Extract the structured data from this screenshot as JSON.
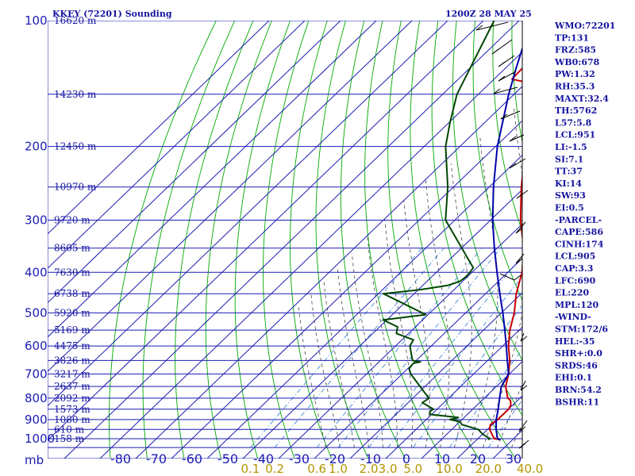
{
  "title_left": "KKEY (72201) Sounding",
  "title_right": "1200Z 28 MAY 25",
  "chart_data": {
    "type": "line",
    "title": "KKEY (72201) Sounding",
    "y_axis": {
      "unit_label": "mb",
      "ticks": [
        100,
        200,
        300,
        400,
        500,
        600,
        700,
        800,
        900,
        1000
      ],
      "ylim": [
        1000,
        100
      ]
    },
    "x_axis": {
      "ticks": [
        -80,
        -70,
        -60,
        -50,
        -40,
        -30,
        -20,
        -10,
        0,
        10,
        20,
        30,
        40
      ],
      "xlim": [
        -80,
        40
      ],
      "skewed": true
    },
    "mixing_ratio_labels": [
      "0.1",
      "0.2",
      "0.6",
      "1.0",
      "2.0",
      "3.0",
      "5.0",
      "10.0",
      "20.0",
      "40.0"
    ],
    "height_labels": [
      {
        "p": 100,
        "label": "16620 m"
      },
      {
        "p": 150,
        "label": "14230 m"
      },
      {
        "p": 200,
        "label": "12450 m"
      },
      {
        "p": 250,
        "label": "10970 m"
      },
      {
        "p": 300,
        "label": "9720 m"
      },
      {
        "p": 350,
        "label": "8605 m"
      },
      {
        "p": 400,
        "label": "7630 m"
      },
      {
        "p": 450,
        "label": "6738 m"
      },
      {
        "p": 500,
        "label": "5920 m"
      },
      {
        "p": 550,
        "label": "5169 m"
      },
      {
        "p": 600,
        "label": "4475 m"
      },
      {
        "p": 650,
        "label": "3826 m"
      },
      {
        "p": 700,
        "label": "3217 m"
      },
      {
        "p": 750,
        "label": "2637 m"
      },
      {
        "p": 800,
        "label": "2092 m"
      },
      {
        "p": 850,
        "label": "1573 m"
      },
      {
        "p": 900,
        "label": "1080 m"
      },
      {
        "p": 950,
        "label": "610 m"
      },
      {
        "p": 1000,
        "label": "158 m"
      }
    ],
    "series": [
      {
        "color": "#c80000",
        "points": [
          {
            "p": 1005,
            "t": 26.6
          },
          {
            "p": 1000,
            "t": 24.6
          },
          {
            "p": 975,
            "t": 22.6
          },
          {
            "p": 950,
            "t": 20.6
          },
          {
            "p": 925,
            "t": 19.4
          },
          {
            "p": 900,
            "t": 20.0
          },
          {
            "p": 850,
            "t": 20.0
          },
          {
            "p": 830,
            "t": 19.4
          },
          {
            "p": 810,
            "t": 18.0
          },
          {
            "p": 800,
            "t": 16.6
          },
          {
            "p": 750,
            "t": 12.6
          },
          {
            "p": 700,
            "t": 9.8
          },
          {
            "p": 650,
            "t": 6.2
          },
          {
            "p": 600,
            "t": 1.6
          },
          {
            "p": 550,
            "t": -2.6
          },
          {
            "p": 500,
            "t": -6.4
          },
          {
            "p": 450,
            "t": -11.4
          },
          {
            "p": 400,
            "t": -16.0
          },
          {
            "p": 350,
            "t": -22.6
          },
          {
            "p": 300,
            "t": -31.6
          },
          {
            "p": 250,
            "t": -41.0
          },
          {
            "p": 200,
            "t": -51.6
          },
          {
            "p": 150,
            "t": -67.0
          },
          {
            "p": 140,
            "t": -71.0
          },
          {
            "p": 138,
            "t": -75.0
          },
          {
            "p": 100,
            "t": -76.2
          }
        ]
      },
      {
        "color": "#004600",
        "points": [
          {
            "p": 1005,
            "t": 23.2
          },
          {
            "p": 1000,
            "t": 23.4
          },
          {
            "p": 975,
            "t": 20.0
          },
          {
            "p": 950,
            "t": 17.4
          },
          {
            "p": 925,
            "t": 11.4
          },
          {
            "p": 910,
            "t": 10.0
          },
          {
            "p": 900,
            "t": 6.6
          },
          {
            "p": 890,
            "t": 8.4
          },
          {
            "p": 875,
            "t": -0.4
          },
          {
            "p": 860,
            "t": -1.4
          },
          {
            "p": 850,
            "t": -1.0
          },
          {
            "p": 820,
            "t": -6.0
          },
          {
            "p": 800,
            "t": -5.4
          },
          {
            "p": 780,
            "t": -7.8
          },
          {
            "p": 700,
            "t": -17.6
          },
          {
            "p": 680,
            "t": -19.6
          },
          {
            "p": 660,
            "t": -20.0
          },
          {
            "p": 655,
            "t": -18.4
          },
          {
            "p": 650,
            "t": -21.0
          },
          {
            "p": 640,
            "t": -22.0
          },
          {
            "p": 600,
            "t": -26.0
          },
          {
            "p": 580,
            "t": -26.8
          },
          {
            "p": 560,
            "t": -33.4
          },
          {
            "p": 540,
            "t": -35.0
          },
          {
            "p": 520,
            "t": -41.0
          },
          {
            "p": 505,
            "t": -30.6
          },
          {
            "p": 450,
            "t": -48.6
          },
          {
            "p": 440,
            "t": -39.4
          },
          {
            "p": 430,
            "t": -33.0
          },
          {
            "p": 420,
            "t": -30.8
          },
          {
            "p": 410,
            "t": -30.4
          },
          {
            "p": 400,
            "t": -30.6
          },
          {
            "p": 390,
            "t": -31.0
          },
          {
            "p": 300,
            "t": -52.6
          },
          {
            "p": 250,
            "t": -61.6
          },
          {
            "p": 200,
            "t": -74.0
          },
          {
            "p": 175,
            "t": -79.8
          },
          {
            "p": 150,
            "t": -86.0
          },
          {
            "p": 100,
            "t": -97.0
          }
        ]
      },
      {
        "color": "#0000aa",
        "points": [
          {
            "p": 1005,
            "t": 26.6
          },
          {
            "p": 1000,
            "t": 25.5
          },
          {
            "p": 950,
            "t": 22.4
          },
          {
            "p": 900,
            "t": 19.6
          },
          {
            "p": 850,
            "t": 17.1
          },
          {
            "p": 800,
            "t": 14.3
          },
          {
            "p": 750,
            "t": 11.4
          },
          {
            "p": 700,
            "t": 9.8
          },
          {
            "p": 650,
            "t": 5.5
          },
          {
            "p": 600,
            "t": 1.0
          },
          {
            "p": 550,
            "t": -4.0
          },
          {
            "p": 500,
            "t": -9.6
          },
          {
            "p": 450,
            "t": -16.0
          },
          {
            "p": 400,
            "t": -23.0
          },
          {
            "p": 350,
            "t": -30.8
          },
          {
            "p": 300,
            "t": -39.4
          },
          {
            "p": 250,
            "t": -48.8
          },
          {
            "p": 200,
            "t": -59.5
          },
          {
            "p": 150,
            "t": -71.5
          },
          {
            "p": 130,
            "t": -77.0
          },
          {
            "p": 115,
            "t": -81.5
          },
          {
            "p": 100,
            "t": -86.0
          }
        ]
      }
    ]
  },
  "indices": [
    "WMO:72201",
    "TP:131",
    "FRZ:585",
    "WB0:678",
    "PW:1.32",
    "RH:35.3",
    "MAXT:32.4",
    "TH:5762",
    "L57:5.8",
    "LCL:951",
    "LI:-1.5",
    "SI:7.1",
    "TT:37",
    "KI:14",
    "SW:93",
    "EI:0.5",
    "-PARCEL-",
    "CAPE:586",
    "CINH:174",
    "LCL:905",
    "CAP:3.3",
    "LFC:690",
    "EL:220",
    "MPL:120",
    "-WIND-",
    "STM:172/6",
    "HEL:-35",
    "SHR+:0.0",
    "SRDS:46",
    "EHI:0.1",
    "BRN:54.2",
    "BSHR:11"
  ],
  "colors": {
    "grid_blue": "#1c1cb4",
    "dry_adiabat": "#00aa00",
    "moist_adiabat": "#444444",
    "mixing_ratio": "#2878d2",
    "label_blue": "#1414a0",
    "mixing_label": "#b49600",
    "background": "#ffffff"
  }
}
